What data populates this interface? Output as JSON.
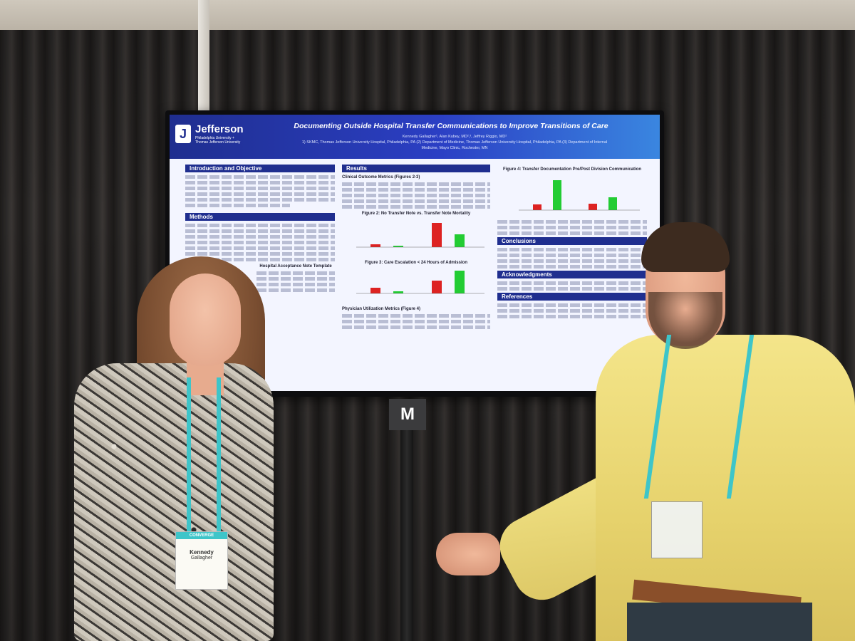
{
  "poster": {
    "logo_name": "Jefferson",
    "logo_sub": "Philadelphia University + Thomas Jefferson University",
    "title": "Documenting Outside Hospital Transfer Communications to Improve Transitions of Care",
    "authors": "Kennedy Gallagher¹, Alan Kubey, MD²,³, Jeffrey Riggio, MD²",
    "affiliations": "1) SKMC, Thomas Jefferson University Hospital, Philadelphia, PA (2) Department of Medicine, Thomas Jefferson University Hospital, Philadelphia, PA (3) Department of Internal Medicine, Mayo Clinic, Rochester, MN",
    "sections": {
      "intro": "Introduction and Objective",
      "methods": "Methods",
      "results": "Results",
      "clinical": "Clinical Outcome Metrics (Figures 2-3)",
      "fig2": "Figure 2: No Transfer Note vs. Transfer Note Mortality",
      "fig3": "Figure 3: Care Escalation < 24 Hours of Admission",
      "physician": "Physician Utilization Metrics (Figure 4)",
      "fig4": "Figure 4: Transfer Documentation Pre/Post Division Communication",
      "conclusions": "Conclusions",
      "acknowledgments": "Acknowledgments",
      "references": "References",
      "template": "Hospital Acceptance Note Template"
    }
  },
  "stand_plate": "M",
  "badge": {
    "name_first": "Kennedy",
    "name_last": "Gallagher",
    "header": "CONVERGE"
  }
}
